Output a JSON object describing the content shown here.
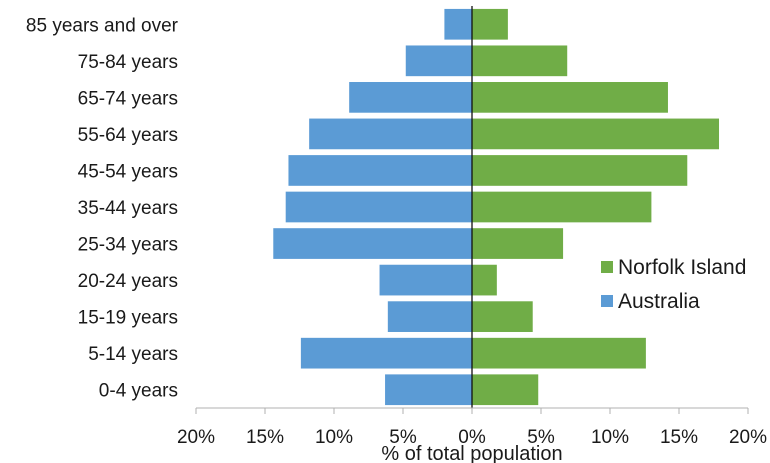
{
  "chart_data": {
    "type": "bar",
    "orientation": "horizontal",
    "categories": [
      "0-4 years",
      "5-14 years",
      "15-19 years",
      "20-24 years",
      "25-34 years",
      "35-44 years",
      "45-54 years",
      "55-64 years",
      "65-74 years",
      "75-84 years",
      "85 years and over"
    ],
    "series": [
      {
        "name": "Norfolk Island",
        "side": "right",
        "color": "#70ad47",
        "values": [
          4.8,
          12.6,
          4.4,
          1.8,
          6.6,
          13.0,
          15.6,
          17.9,
          14.2,
          6.9,
          2.6
        ]
      },
      {
        "name": "Australia",
        "side": "left",
        "color": "#5b9bd5",
        "values": [
          6.3,
          12.4,
          6.1,
          6.7,
          14.4,
          13.5,
          13.3,
          11.8,
          8.9,
          4.8,
          2.0
        ]
      }
    ],
    "xlabel": "% of total population",
    "xlim": [
      -20,
      20
    ],
    "x_ticks": [
      "20%",
      "15%",
      "10%",
      "5%",
      "0%",
      "5%",
      "10%",
      "15%",
      "20%"
    ],
    "grid": false,
    "legend_position": "right-lower"
  }
}
